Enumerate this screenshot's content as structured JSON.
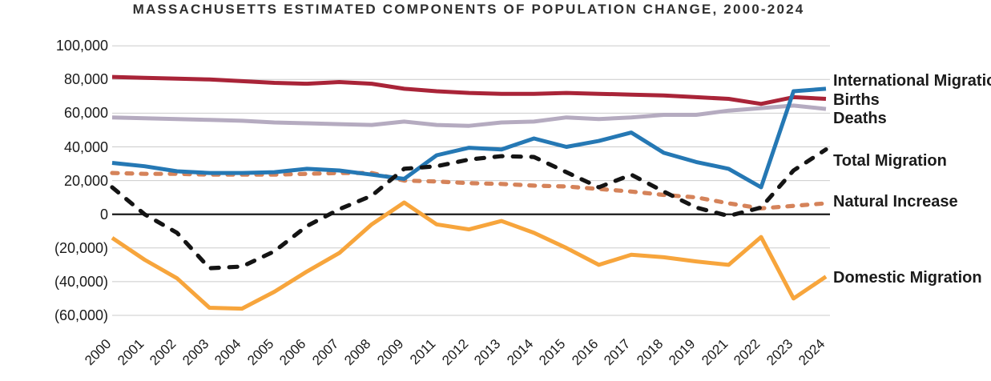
{
  "header": {
    "title": "MASSACHUSETTS ESTIMATED COMPONENTS OF POPULATION CHANGE, 2000-2024"
  },
  "chart_data": {
    "type": "line",
    "title": "MASSACHUSETTS ESTIMATED COMPONENTS OF POPULATION CHANGE, 2000-2024",
    "x_labels": [
      "2000",
      "2001",
      "2002",
      "2003",
      "2004",
      "2005",
      "2006",
      "2007",
      "2008",
      "2009",
      "2011",
      "2012",
      "2013",
      "2014",
      "2015",
      "2016",
      "2017",
      "2018",
      "2019",
      "2021",
      "2022",
      "2023",
      "2024"
    ],
    "y_axis": {
      "tick_labels": [
        "100,000",
        "80,000",
        "60,000",
        "40,000",
        "20,000",
        "0",
        "(20,000)",
        "(40,000)",
        "(60,000)"
      ],
      "tick_values": [
        100000,
        80000,
        60000,
        40000,
        20000,
        0,
        -20000,
        -40000,
        -60000
      ],
      "range": [
        -60000,
        100000
      ],
      "grid": true,
      "grid_color": "#cbcbcb",
      "zero_line_color": "#1a1a1a"
    },
    "legend_position": "right-inline-labels",
    "series": [
      {
        "name": "Deaths",
        "label": "Deaths",
        "color": "#b5abc0",
        "style": "solid",
        "values": [
          57500,
          57000,
          56500,
          56000,
          55500,
          54500,
          54000,
          53500,
          53000,
          55000,
          53000,
          52500,
          54500,
          55000,
          57500,
          56500,
          57500,
          59000,
          59000,
          61500,
          63000,
          64500,
          62500
        ]
      },
      {
        "name": "Births",
        "label": "Births",
        "color": "#a92438",
        "style": "solid",
        "values": [
          81500,
          81000,
          80500,
          80000,
          79000,
          78000,
          77500,
          78500,
          77500,
          74500,
          73000,
          72000,
          71500,
          71500,
          72000,
          71500,
          71000,
          70500,
          69500,
          68500,
          65500,
          69500,
          68500
        ]
      },
      {
        "name": "Natural Increase",
        "label": "Natural Increase",
        "color": "#d5835a",
        "style": "dashed",
        "values": [
          24500,
          24000,
          24000,
          23500,
          23500,
          23500,
          24000,
          24500,
          24500,
          20000,
          19500,
          18500,
          18000,
          17000,
          16500,
          15000,
          13500,
          11500,
          10000,
          6500,
          3500,
          5000,
          6500
        ]
      },
      {
        "name": "Domestic Migration",
        "label": "Domestic Migration",
        "color": "#f7a53c",
        "style": "solid",
        "values": [
          -14000,
          -27000,
          -38000,
          -55500,
          -56000,
          -46000,
          -34000,
          -23000,
          -6000,
          7000,
          -6000,
          -9000,
          -4000,
          -11000,
          -20000,
          -30000,
          -24000,
          -25500,
          -28000,
          -30000,
          -13500,
          -50000,
          -37000
        ]
      },
      {
        "name": "International Migration",
        "label": "International Migration",
        "color": "#2578b4",
        "style": "solid",
        "values": [
          30500,
          28500,
          25500,
          24500,
          24500,
          25000,
          27000,
          26000,
          23500,
          21000,
          35000,
          39500,
          38500,
          45000,
          40000,
          43500,
          48500,
          36500,
          31000,
          27000,
          16000,
          73000,
          74500
        ]
      },
      {
        "name": "Total Migration",
        "label": "Total Migration",
        "color": "#141414",
        "style": "dashed",
        "values": [
          16000,
          0,
          -11000,
          -32000,
          -31000,
          -22000,
          -7000,
          3000,
          11000,
          27000,
          28500,
          32500,
          34500,
          34000,
          25000,
          16000,
          23500,
          13500,
          4000,
          -1000,
          4000,
          26000,
          38500
        ]
      }
    ]
  }
}
